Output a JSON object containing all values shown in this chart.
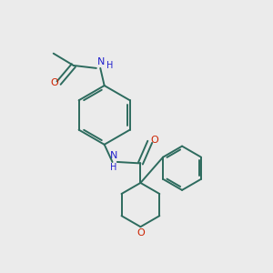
{
  "background_color": "#ebebeb",
  "bond_color": "#2d6b5e",
  "nitrogen_color": "#2222cc",
  "oxygen_color": "#cc2200",
  "line_width": 1.4,
  "figsize": [
    3.0,
    3.0
  ],
  "dpi": 100,
  "xlim": [
    0,
    10
  ],
  "ylim": [
    0,
    10
  ]
}
